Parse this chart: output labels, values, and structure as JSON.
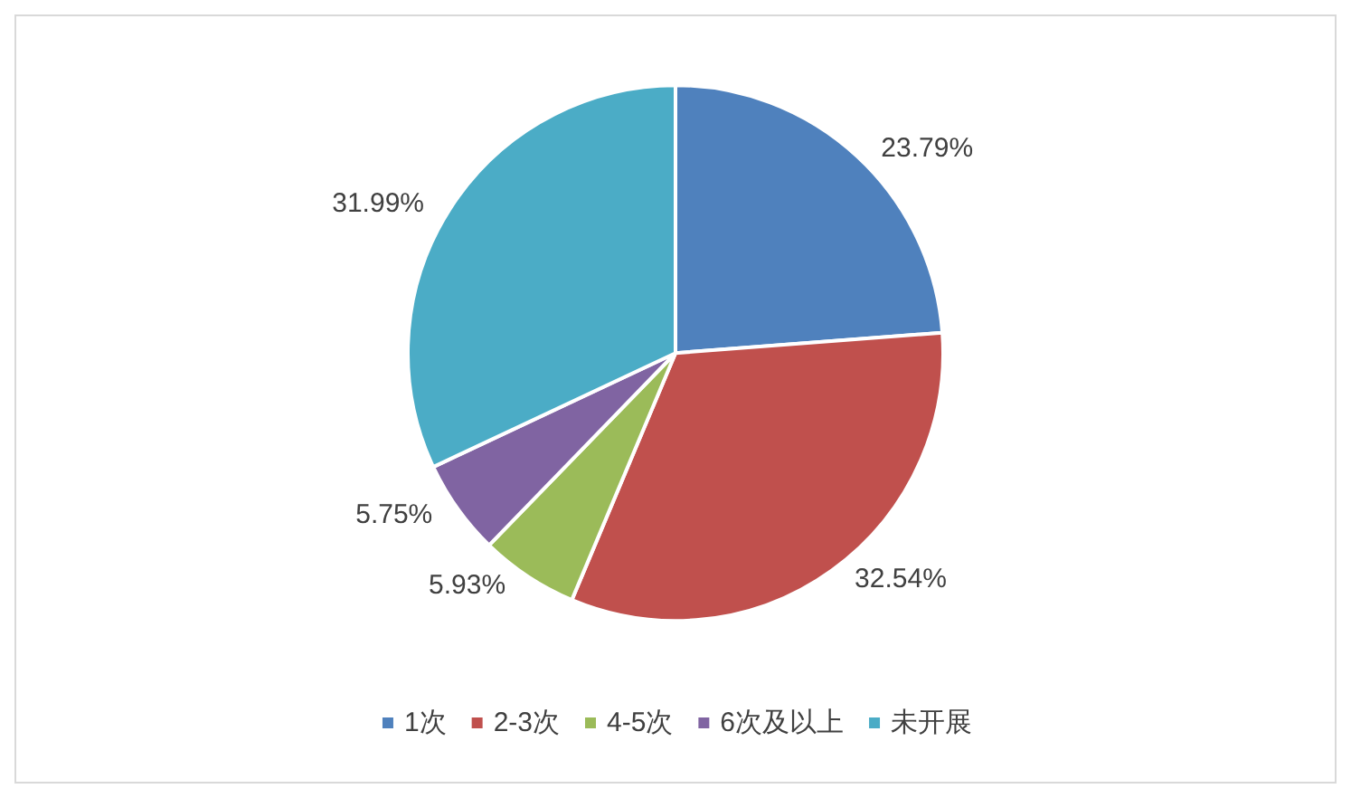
{
  "chart_data": {
    "type": "pie",
    "categories": [
      "1次",
      "2-3次",
      "4-5次",
      "6次及以上",
      "未开展"
    ],
    "values": [
      23.79,
      32.54,
      5.93,
      5.75,
      31.99
    ],
    "colors": [
      "#4f81bd",
      "#c0504d",
      "#9bbb59",
      "#8064a2",
      "#4bacc6"
    ],
    "value_labels": [
      "23.79%",
      "32.54%",
      "5.93%",
      "5.75%",
      "31.99%"
    ],
    "legend": "bottom"
  }
}
